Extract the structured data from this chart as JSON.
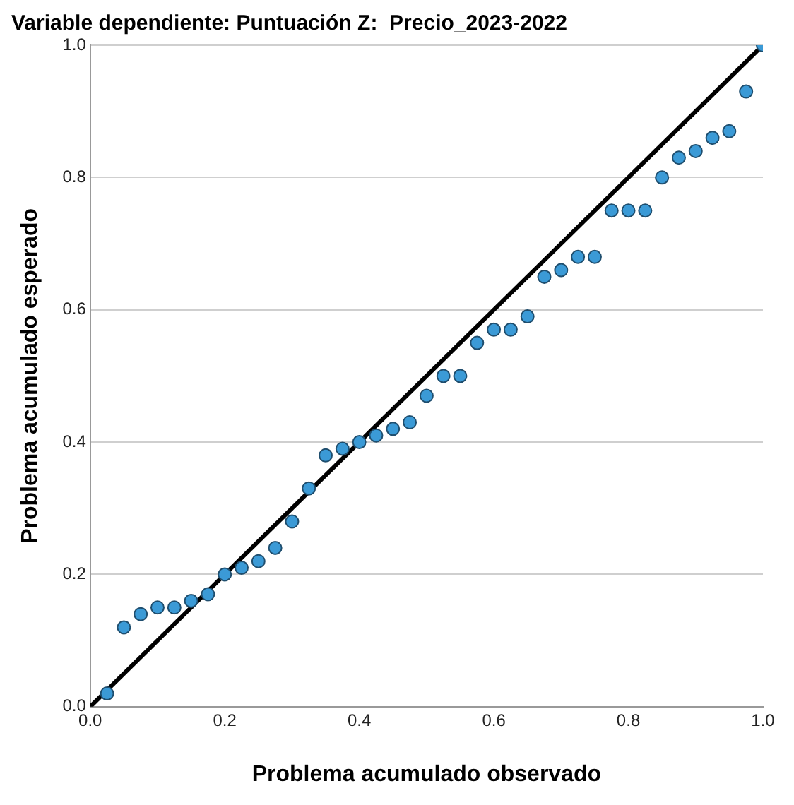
{
  "chart_data": {
    "type": "scatter",
    "title": "Variable dependiente: Puntuación Z:  Precio_2023-2022",
    "xlabel": "Problema acumulado observado",
    "ylabel": "Problema acumulado esperado",
    "xlim": [
      0,
      1
    ],
    "ylim": [
      0,
      1
    ],
    "xticks": [
      {
        "value": 0,
        "label": "0.0"
      },
      {
        "value": 0.2,
        "label": "0.2"
      },
      {
        "value": 0.4,
        "label": "0.4"
      },
      {
        "value": 0.6,
        "label": "0.6"
      },
      {
        "value": 0.8,
        "label": "0.8"
      },
      {
        "value": 1,
        "label": "1.0"
      }
    ],
    "yticks": [
      {
        "value": 0,
        "label": "0.0"
      },
      {
        "value": 0.2,
        "label": "0.2"
      },
      {
        "value": 0.4,
        "label": "0.4"
      },
      {
        "value": 0.6,
        "label": "0.6"
      },
      {
        "value": 0.8,
        "label": "0.8"
      },
      {
        "value": 1,
        "label": "1.0"
      }
    ],
    "grid": "y",
    "legend": false,
    "series": [
      {
        "color": "#3b9ad6",
        "marker": "circle",
        "x": [
          0.025,
          0.05,
          0.075,
          0.1,
          0.125,
          0.15,
          0.175,
          0.2,
          0.225,
          0.25,
          0.275,
          0.3,
          0.325,
          0.35,
          0.375,
          0.4,
          0.425,
          0.45,
          0.475,
          0.5,
          0.525,
          0.55,
          0.575,
          0.6,
          0.625,
          0.65,
          0.675,
          0.7,
          0.725,
          0.75,
          0.775,
          0.8,
          0.825,
          0.85,
          0.875,
          0.9,
          0.925,
          0.95,
          0.975,
          1
        ],
        "values": [
          0.02,
          0.12,
          0.14,
          0.15,
          0.15,
          0.16,
          0.17,
          0.2,
          0.21,
          0.22,
          0.24,
          0.28,
          0.33,
          0.38,
          0.39,
          0.4,
          0.41,
          0.42,
          0.43,
          0.47,
          0.5,
          0.5,
          0.55,
          0.57,
          0.57,
          0.59,
          0.65,
          0.66,
          0.68,
          0.68,
          0.75,
          0.75,
          0.75,
          0.8,
          0.83,
          0.84,
          0.86,
          0.87,
          0.93,
          1
        ]
      },
      {
        "type": "line",
        "color": "#000000",
        "marker": "none",
        "x": [
          0,
          1
        ],
        "values": [
          0,
          1
        ]
      }
    ]
  }
}
